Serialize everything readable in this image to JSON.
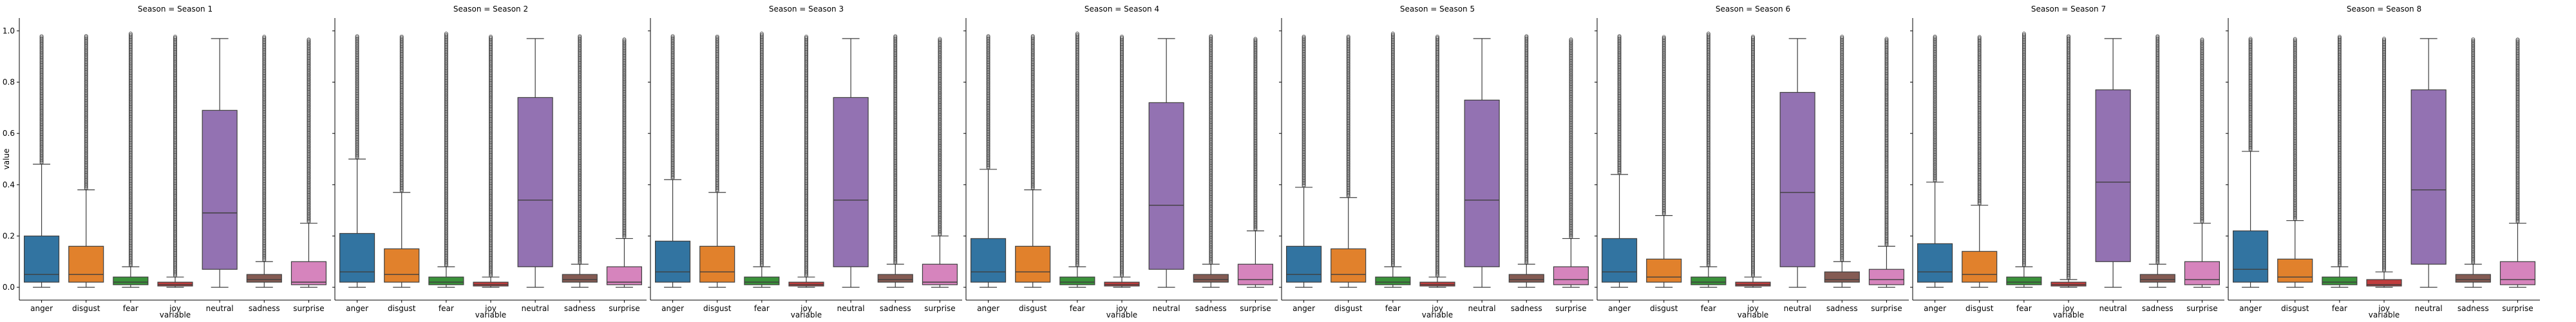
{
  "chart_data": {
    "type": "box",
    "ylabel": "value",
    "xlabel": "variable",
    "ylim": [
      -0.05,
      1.05
    ],
    "yticks": [
      0.0,
      0.2,
      0.4,
      0.6,
      0.8,
      1.0
    ],
    "ytick_labels": [
      "0.0",
      "0.2",
      "0.4",
      "0.6",
      "0.8",
      "1.0"
    ],
    "categories": [
      "anger",
      "disgust",
      "fear",
      "joy",
      "neutral",
      "sadness",
      "surprise"
    ],
    "colors": {
      "anger": "#3274a1",
      "disgust": "#e1812c",
      "fear": "#3a923a",
      "joy": "#c03d3e",
      "neutral": "#9372b2",
      "sadness": "#845b53",
      "surprise": "#d684bd"
    },
    "panels": [
      {
        "title": "Season = Season 1",
        "boxes": [
          {
            "variable": "anger",
            "q1": 0.02,
            "median": 0.05,
            "q3": 0.2,
            "whisker_low": 0.0,
            "whisker_high": 0.48,
            "outliers_from": 0.48,
            "outliers_to": 0.98
          },
          {
            "variable": "disgust",
            "q1": 0.02,
            "median": 0.05,
            "q3": 0.16,
            "whisker_low": 0.0,
            "whisker_high": 0.38,
            "outliers_from": 0.38,
            "outliers_to": 0.98
          },
          {
            "variable": "fear",
            "q1": 0.01,
            "median": 0.02,
            "q3": 0.04,
            "whisker_low": 0.0,
            "whisker_high": 0.08,
            "outliers_from": 0.08,
            "outliers_to": 0.99
          },
          {
            "variable": "joy",
            "q1": 0.005,
            "median": 0.01,
            "q3": 0.02,
            "whisker_low": 0.0,
            "whisker_high": 0.04,
            "outliers_from": 0.04,
            "outliers_to": 0.98
          },
          {
            "variable": "neutral",
            "q1": 0.07,
            "median": 0.29,
            "q3": 0.69,
            "whisker_low": 0.0,
            "whisker_high": 0.97,
            "outliers_from": null,
            "outliers_to": null
          },
          {
            "variable": "sadness",
            "q1": 0.02,
            "median": 0.03,
            "q3": 0.05,
            "whisker_low": 0.0,
            "whisker_high": 0.1,
            "outliers_from": 0.1,
            "outliers_to": 0.98
          },
          {
            "variable": "surprise",
            "q1": 0.01,
            "median": 0.02,
            "q3": 0.1,
            "whisker_low": 0.0,
            "whisker_high": 0.25,
            "outliers_from": 0.25,
            "outliers_to": 0.97
          }
        ]
      },
      {
        "title": "Season = Season 2",
        "boxes": [
          {
            "variable": "anger",
            "q1": 0.02,
            "median": 0.06,
            "q3": 0.21,
            "whisker_low": 0.0,
            "whisker_high": 0.5,
            "outliers_from": 0.5,
            "outliers_to": 0.98
          },
          {
            "variable": "disgust",
            "q1": 0.02,
            "median": 0.05,
            "q3": 0.15,
            "whisker_low": 0.0,
            "whisker_high": 0.37,
            "outliers_from": 0.37,
            "outliers_to": 0.98
          },
          {
            "variable": "fear",
            "q1": 0.01,
            "median": 0.02,
            "q3": 0.04,
            "whisker_low": 0.0,
            "whisker_high": 0.08,
            "outliers_from": 0.08,
            "outliers_to": 0.99
          },
          {
            "variable": "joy",
            "q1": 0.005,
            "median": 0.01,
            "q3": 0.02,
            "whisker_low": 0.0,
            "whisker_high": 0.04,
            "outliers_from": 0.04,
            "outliers_to": 0.98
          },
          {
            "variable": "neutral",
            "q1": 0.08,
            "median": 0.34,
            "q3": 0.74,
            "whisker_low": 0.0,
            "whisker_high": 0.97,
            "outliers_from": null,
            "outliers_to": null
          },
          {
            "variable": "sadness",
            "q1": 0.02,
            "median": 0.03,
            "q3": 0.05,
            "whisker_low": 0.0,
            "whisker_high": 0.09,
            "outliers_from": 0.09,
            "outliers_to": 0.98
          },
          {
            "variable": "surprise",
            "q1": 0.01,
            "median": 0.02,
            "q3": 0.08,
            "whisker_low": 0.0,
            "whisker_high": 0.19,
            "outliers_from": 0.19,
            "outliers_to": 0.97
          }
        ]
      },
      {
        "title": "Season = Season 3",
        "boxes": [
          {
            "variable": "anger",
            "q1": 0.02,
            "median": 0.06,
            "q3": 0.18,
            "whisker_low": 0.0,
            "whisker_high": 0.42,
            "outliers_from": 0.42,
            "outliers_to": 0.98
          },
          {
            "variable": "disgust",
            "q1": 0.02,
            "median": 0.06,
            "q3": 0.16,
            "whisker_low": 0.0,
            "whisker_high": 0.37,
            "outliers_from": 0.37,
            "outliers_to": 0.98
          },
          {
            "variable": "fear",
            "q1": 0.01,
            "median": 0.02,
            "q3": 0.04,
            "whisker_low": 0.0,
            "whisker_high": 0.08,
            "outliers_from": 0.08,
            "outliers_to": 0.99
          },
          {
            "variable": "joy",
            "q1": 0.005,
            "median": 0.01,
            "q3": 0.02,
            "whisker_low": 0.0,
            "whisker_high": 0.04,
            "outliers_from": 0.04,
            "outliers_to": 0.98
          },
          {
            "variable": "neutral",
            "q1": 0.08,
            "median": 0.34,
            "q3": 0.74,
            "whisker_low": 0.0,
            "whisker_high": 0.97,
            "outliers_from": null,
            "outliers_to": null
          },
          {
            "variable": "sadness",
            "q1": 0.02,
            "median": 0.03,
            "q3": 0.05,
            "whisker_low": 0.0,
            "whisker_high": 0.09,
            "outliers_from": 0.09,
            "outliers_to": 0.98
          },
          {
            "variable": "surprise",
            "q1": 0.01,
            "median": 0.02,
            "q3": 0.09,
            "whisker_low": 0.0,
            "whisker_high": 0.2,
            "outliers_from": 0.2,
            "outliers_to": 0.97
          }
        ]
      },
      {
        "title": "Season = Season 4",
        "boxes": [
          {
            "variable": "anger",
            "q1": 0.02,
            "median": 0.06,
            "q3": 0.19,
            "whisker_low": 0.0,
            "whisker_high": 0.46,
            "outliers_from": 0.46,
            "outliers_to": 0.98
          },
          {
            "variable": "disgust",
            "q1": 0.02,
            "median": 0.06,
            "q3": 0.16,
            "whisker_low": 0.0,
            "whisker_high": 0.38,
            "outliers_from": 0.38,
            "outliers_to": 0.98
          },
          {
            "variable": "fear",
            "q1": 0.01,
            "median": 0.02,
            "q3": 0.04,
            "whisker_low": 0.0,
            "whisker_high": 0.08,
            "outliers_from": 0.08,
            "outliers_to": 0.99
          },
          {
            "variable": "joy",
            "q1": 0.005,
            "median": 0.01,
            "q3": 0.02,
            "whisker_low": 0.0,
            "whisker_high": 0.04,
            "outliers_from": 0.04,
            "outliers_to": 0.98
          },
          {
            "variable": "neutral",
            "q1": 0.07,
            "median": 0.32,
            "q3": 0.72,
            "whisker_low": 0.0,
            "whisker_high": 0.97,
            "outliers_from": null,
            "outliers_to": null
          },
          {
            "variable": "sadness",
            "q1": 0.02,
            "median": 0.03,
            "q3": 0.05,
            "whisker_low": 0.0,
            "whisker_high": 0.09,
            "outliers_from": 0.09,
            "outliers_to": 0.98
          },
          {
            "variable": "surprise",
            "q1": 0.01,
            "median": 0.03,
            "q3": 0.09,
            "whisker_low": 0.0,
            "whisker_high": 0.22,
            "outliers_from": 0.22,
            "outliers_to": 0.97
          }
        ]
      },
      {
        "title": "Season = Season 5",
        "boxes": [
          {
            "variable": "anger",
            "q1": 0.02,
            "median": 0.05,
            "q3": 0.16,
            "whisker_low": 0.0,
            "whisker_high": 0.39,
            "outliers_from": 0.39,
            "outliers_to": 0.98
          },
          {
            "variable": "disgust",
            "q1": 0.02,
            "median": 0.05,
            "q3": 0.15,
            "whisker_low": 0.0,
            "whisker_high": 0.35,
            "outliers_from": 0.35,
            "outliers_to": 0.98
          },
          {
            "variable": "fear",
            "q1": 0.01,
            "median": 0.02,
            "q3": 0.04,
            "whisker_low": 0.0,
            "whisker_high": 0.08,
            "outliers_from": 0.08,
            "outliers_to": 0.99
          },
          {
            "variable": "joy",
            "q1": 0.005,
            "median": 0.01,
            "q3": 0.02,
            "whisker_low": 0.0,
            "whisker_high": 0.04,
            "outliers_from": 0.04,
            "outliers_to": 0.98
          },
          {
            "variable": "neutral",
            "q1": 0.08,
            "median": 0.34,
            "q3": 0.73,
            "whisker_low": 0.0,
            "whisker_high": 0.97,
            "outliers_from": null,
            "outliers_to": null
          },
          {
            "variable": "sadness",
            "q1": 0.02,
            "median": 0.03,
            "q3": 0.05,
            "whisker_low": 0.0,
            "whisker_high": 0.09,
            "outliers_from": 0.09,
            "outliers_to": 0.98
          },
          {
            "variable": "surprise",
            "q1": 0.01,
            "median": 0.03,
            "q3": 0.08,
            "whisker_low": 0.0,
            "whisker_high": 0.19,
            "outliers_from": 0.19,
            "outliers_to": 0.97
          }
        ]
      },
      {
        "title": "Season = Season 6",
        "boxes": [
          {
            "variable": "anger",
            "q1": 0.02,
            "median": 0.06,
            "q3": 0.19,
            "whisker_low": 0.0,
            "whisker_high": 0.44,
            "outliers_from": 0.44,
            "outliers_to": 0.98
          },
          {
            "variable": "disgust",
            "q1": 0.02,
            "median": 0.04,
            "q3": 0.11,
            "whisker_low": 0.0,
            "whisker_high": 0.28,
            "outliers_from": 0.28,
            "outliers_to": 0.98
          },
          {
            "variable": "fear",
            "q1": 0.01,
            "median": 0.02,
            "q3": 0.04,
            "whisker_low": 0.0,
            "whisker_high": 0.08,
            "outliers_from": 0.08,
            "outliers_to": 0.99
          },
          {
            "variable": "joy",
            "q1": 0.005,
            "median": 0.01,
            "q3": 0.02,
            "whisker_low": 0.0,
            "whisker_high": 0.04,
            "outliers_from": 0.04,
            "outliers_to": 0.98
          },
          {
            "variable": "neutral",
            "q1": 0.08,
            "median": 0.37,
            "q3": 0.76,
            "whisker_low": 0.0,
            "whisker_high": 0.97,
            "outliers_from": null,
            "outliers_to": null
          },
          {
            "variable": "sadness",
            "q1": 0.02,
            "median": 0.03,
            "q3": 0.06,
            "whisker_low": 0.0,
            "whisker_high": 0.1,
            "outliers_from": 0.1,
            "outliers_to": 0.98
          },
          {
            "variable": "surprise",
            "q1": 0.01,
            "median": 0.03,
            "q3": 0.07,
            "whisker_low": 0.0,
            "whisker_high": 0.16,
            "outliers_from": 0.16,
            "outliers_to": 0.97
          }
        ]
      },
      {
        "title": "Season = Season 7",
        "boxes": [
          {
            "variable": "anger",
            "q1": 0.02,
            "median": 0.06,
            "q3": 0.17,
            "whisker_low": 0.0,
            "whisker_high": 0.41,
            "outliers_from": 0.41,
            "outliers_to": 0.98
          },
          {
            "variable": "disgust",
            "q1": 0.02,
            "median": 0.05,
            "q3": 0.14,
            "whisker_low": 0.0,
            "whisker_high": 0.32,
            "outliers_from": 0.32,
            "outliers_to": 0.98
          },
          {
            "variable": "fear",
            "q1": 0.01,
            "median": 0.02,
            "q3": 0.04,
            "whisker_low": 0.0,
            "whisker_high": 0.08,
            "outliers_from": 0.08,
            "outliers_to": 0.99
          },
          {
            "variable": "joy",
            "q1": 0.005,
            "median": 0.01,
            "q3": 0.02,
            "whisker_low": 0.0,
            "whisker_high": 0.03,
            "outliers_from": 0.03,
            "outliers_to": 0.98
          },
          {
            "variable": "neutral",
            "q1": 0.1,
            "median": 0.41,
            "q3": 0.77,
            "whisker_low": 0.0,
            "whisker_high": 0.97,
            "outliers_from": null,
            "outliers_to": null
          },
          {
            "variable": "sadness",
            "q1": 0.02,
            "median": 0.03,
            "q3": 0.05,
            "whisker_low": 0.0,
            "whisker_high": 0.09,
            "outliers_from": 0.09,
            "outliers_to": 0.98
          },
          {
            "variable": "surprise",
            "q1": 0.01,
            "median": 0.03,
            "q3": 0.1,
            "whisker_low": 0.0,
            "whisker_high": 0.25,
            "outliers_from": 0.25,
            "outliers_to": 0.97
          }
        ]
      },
      {
        "title": "Season = Season 8",
        "boxes": [
          {
            "variable": "anger",
            "q1": 0.02,
            "median": 0.07,
            "q3": 0.22,
            "whisker_low": 0.0,
            "whisker_high": 0.53,
            "outliers_from": 0.53,
            "outliers_to": 0.97
          },
          {
            "variable": "disgust",
            "q1": 0.02,
            "median": 0.04,
            "q3": 0.11,
            "whisker_low": 0.0,
            "whisker_high": 0.26,
            "outliers_from": 0.26,
            "outliers_to": 0.97
          },
          {
            "variable": "fear",
            "q1": 0.01,
            "median": 0.02,
            "q3": 0.04,
            "whisker_low": 0.0,
            "whisker_high": 0.08,
            "outliers_from": 0.08,
            "outliers_to": 0.98
          },
          {
            "variable": "joy",
            "q1": 0.005,
            "median": 0.01,
            "q3": 0.03,
            "whisker_low": 0.0,
            "whisker_high": 0.06,
            "outliers_from": 0.06,
            "outliers_to": 0.97
          },
          {
            "variable": "neutral",
            "q1": 0.09,
            "median": 0.38,
            "q3": 0.77,
            "whisker_low": 0.0,
            "whisker_high": 0.97,
            "outliers_from": null,
            "outliers_to": null
          },
          {
            "variable": "sadness",
            "q1": 0.02,
            "median": 0.03,
            "q3": 0.05,
            "whisker_low": 0.0,
            "whisker_high": 0.09,
            "outliers_from": 0.09,
            "outliers_to": 0.97
          },
          {
            "variable": "surprise",
            "q1": 0.01,
            "median": 0.03,
            "q3": 0.1,
            "whisker_low": 0.0,
            "whisker_high": 0.25,
            "outliers_from": 0.25,
            "outliers_to": 0.97
          }
        ]
      }
    ]
  }
}
